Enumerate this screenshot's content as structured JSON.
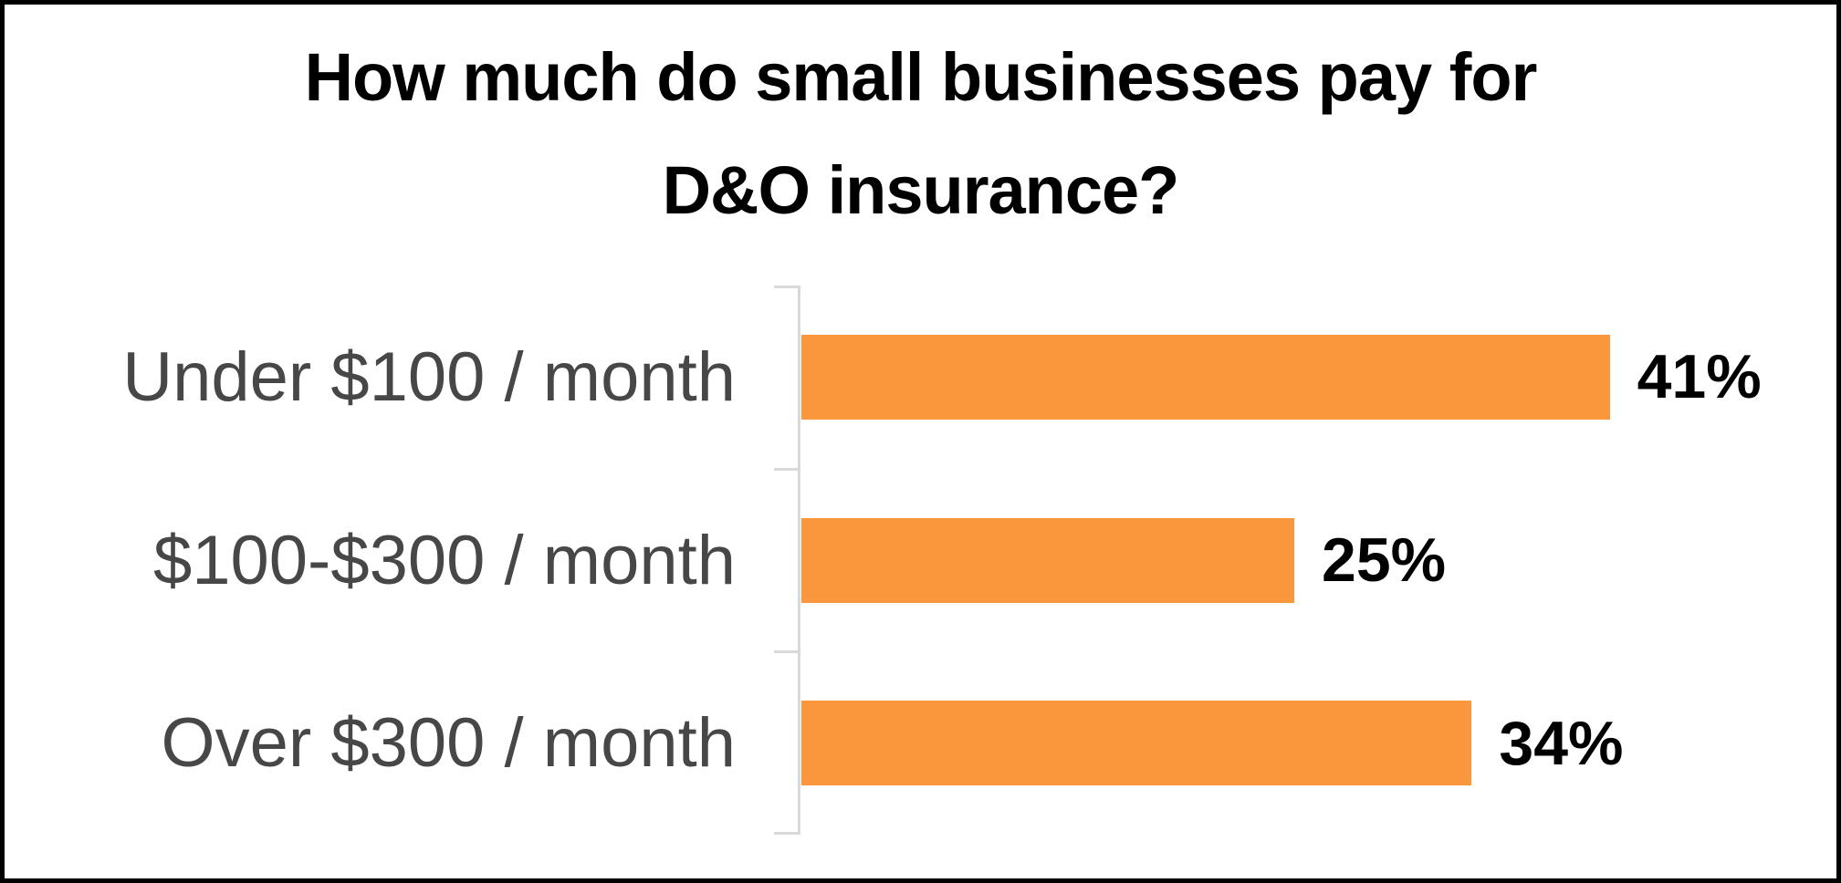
{
  "chart_data": {
    "type": "bar",
    "orientation": "horizontal",
    "title": "How much do small businesses pay for D&O insurance?",
    "title_lines": [
      "How much do small businesses pay for",
      "D&O insurance?"
    ],
    "categories": [
      "Under $100 / month",
      "$100-$300 / month",
      "Over $300 / month"
    ],
    "values": [
      41,
      25,
      34
    ],
    "value_labels": [
      "41%",
      "25%",
      "34%"
    ],
    "xlabel": "",
    "ylabel": "",
    "xlim": [
      0,
      52.5
    ],
    "grid": false,
    "legend": false,
    "colors": {
      "bar": "#FA963C",
      "category_label": "#474747",
      "value_label": "#000000",
      "title": "#000000",
      "axis": "#D9D9D9",
      "background": "#FFFFFF",
      "frame_border": "#000000"
    }
  }
}
